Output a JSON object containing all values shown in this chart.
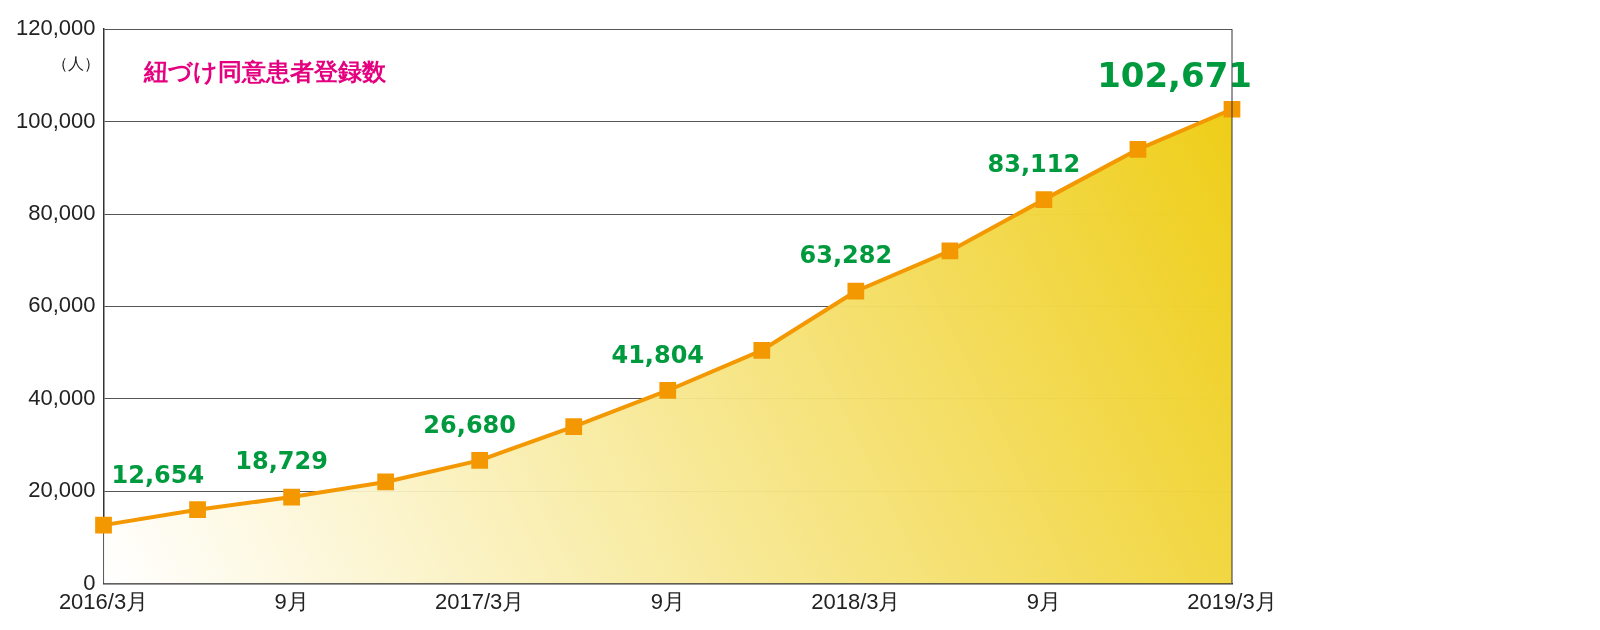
{
  "chart_data": {
    "type": "area",
    "title": "紐づけ同意患者登録数",
    "ylabel": "（人）",
    "categories": [
      "2016/3月",
      null,
      "9月",
      null,
      "2017/3月",
      null,
      "9月",
      null,
      "2018/3月",
      null,
      "9月",
      null,
      "2019/3月"
    ],
    "series": [
      {
        "color": "#f39800",
        "values": [
          12654,
          16000,
          18729,
          22000,
          26680,
          34000,
          41804,
          50500,
          63282,
          72000,
          83112,
          94000,
          102671
        ],
        "value_labels": [
          "12,654",
          null,
          "18,729",
          null,
          "26,680",
          null,
          "41,804",
          null,
          "63,282",
          null,
          "83,112",
          null,
          "102,671"
        ]
      }
    ],
    "ylim": [
      0,
      120000
    ],
    "yticks": [
      0,
      {
        "value": 20000,
        "label": "20,000"
      },
      {
        "value": 40000,
        "label": "40,000"
      },
      {
        "value": 60000,
        "label": "60,000"
      },
      {
        "value": 80000,
        "label": "80,000"
      },
      {
        "value": 100000,
        "label": "100,000"
      },
      {
        "value": 120000,
        "label": "120,000"
      }
    ],
    "grid": "y",
    "marker": "square",
    "line_style": "solid",
    "legend": false
  }
}
